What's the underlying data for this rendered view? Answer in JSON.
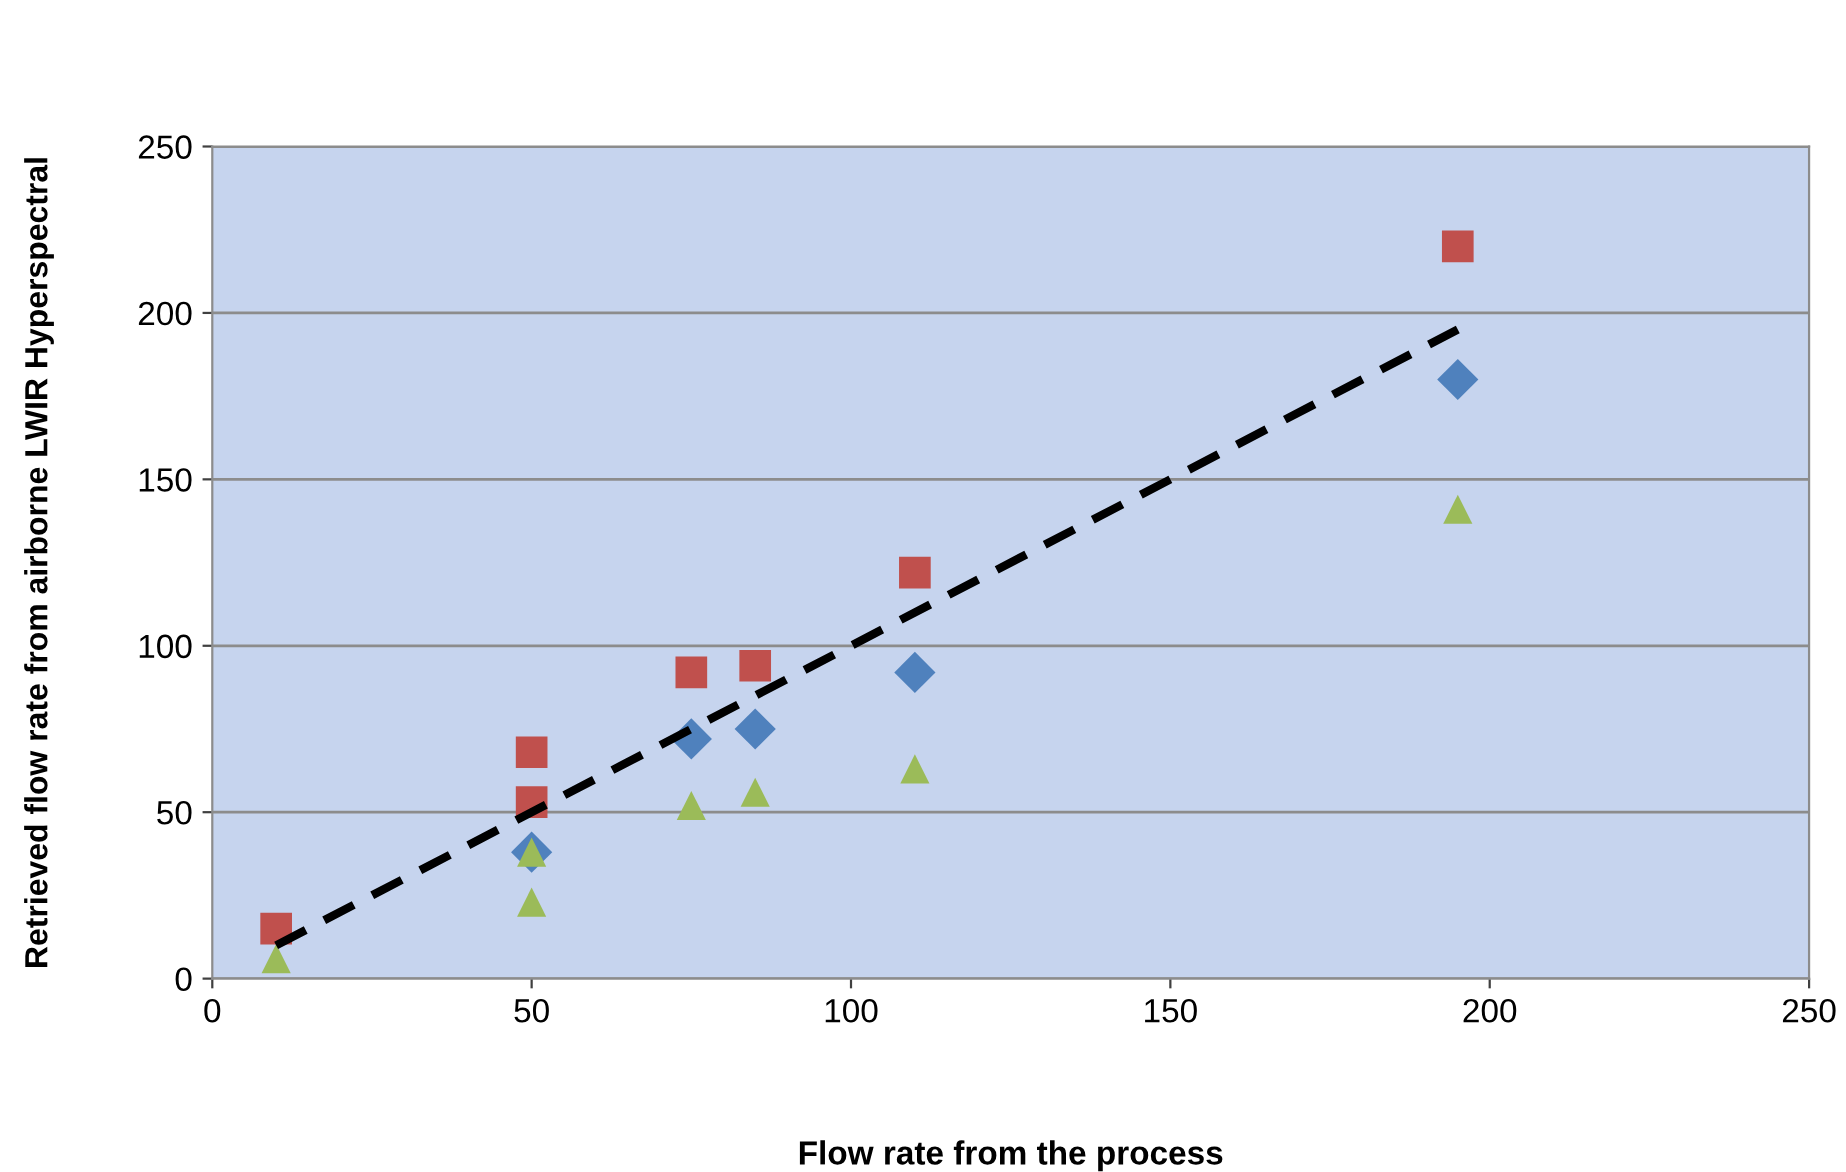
{
  "chart_data": {
    "type": "scatter",
    "xlabel": "Flow rate from the process",
    "ylabel": "Retrieved flow rate from airborne LWIR Hyperspectral",
    "series": [
      {
        "color": "#4f81bd",
        "marker": "diamond",
        "x": [
          50,
          75,
          85,
          110,
          195
        ],
        "values": [
          38,
          72,
          75,
          92,
          180
        ]
      },
      {
        "color": "#c0504d",
        "marker": "square",
        "x": [
          10,
          50,
          50,
          75,
          85,
          110,
          195
        ],
        "values": [
          15,
          68,
          53,
          92,
          94,
          122,
          220
        ]
      },
      {
        "color": "#9bbb59",
        "marker": "triangle",
        "x": [
          10,
          50,
          50,
          75,
          85,
          110,
          195
        ],
        "values": [
          6,
          38,
          23,
          52,
          56,
          63,
          141
        ]
      },
      {
        "type": "line",
        "color": "#000000",
        "marker": "none",
        "line_style": "dashed",
        "x": [
          10,
          195
        ],
        "values": [
          10,
          195
        ]
      }
    ],
    "xlim": [
      0,
      250
    ],
    "xticks": [
      0,
      50,
      100,
      150,
      200,
      250
    ],
    "ylim": [
      0,
      250
    ],
    "yticks": [
      0,
      50,
      100,
      150,
      200,
      250
    ],
    "grid": "y"
  }
}
